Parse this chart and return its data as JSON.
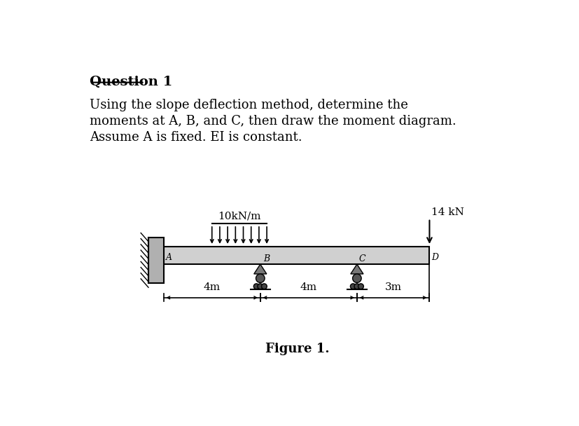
{
  "bg_color": "#ffffff",
  "title_text": "Question 1",
  "body_line1": "Using the slope deflection method, determine the",
  "body_line2": "moments at A, B, and C, then draw the moment diagram.",
  "body_line3": "Assume A is fixed. EI is constant.",
  "figure_caption": "Figure 1.",
  "load_label": "10kN/m",
  "point_load_label": "14 kN",
  "dim_labels": [
    "4m",
    "4m",
    "3m"
  ],
  "node_labels": [
    "A",
    "B",
    "C",
    "D"
  ],
  "beam_color": "#d0d0d0",
  "beam_edge_color": "#000000",
  "wall_face_color": "#b0b0b0",
  "wall_edge_color": "#000000"
}
